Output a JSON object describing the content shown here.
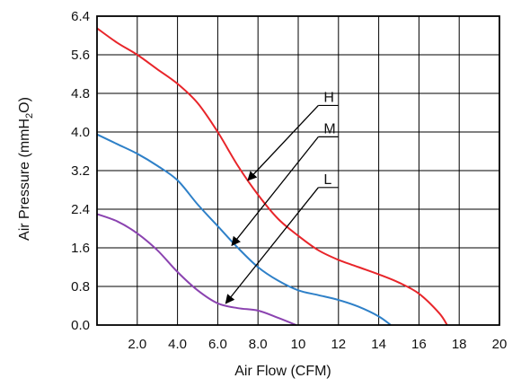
{
  "chart_data": {
    "type": "line",
    "xlabel": "Air Flow (CFM)",
    "ylabel_parts": [
      "Air Pressure (mmH",
      "2",
      "O)"
    ],
    "xlim": [
      0,
      20
    ],
    "ylim": [
      0,
      6.4
    ],
    "grid": true,
    "x_ticks": [
      {
        "value": 2,
        "label": "2.0"
      },
      {
        "value": 4,
        "label": "4.0"
      },
      {
        "value": 6,
        "label": "6.0"
      },
      {
        "value": 8,
        "label": "8.0"
      },
      {
        "value": 10,
        "label": "10"
      },
      {
        "value": 12,
        "label": "12"
      },
      {
        "value": 14,
        "label": "14"
      },
      {
        "value": 16,
        "label": "16"
      },
      {
        "value": 18,
        "label": "18"
      },
      {
        "value": 20,
        "label": "20"
      }
    ],
    "y_ticks": [
      {
        "value": 0,
        "label": "0.0"
      },
      {
        "value": 0.8,
        "label": "0.8"
      },
      {
        "value": 1.6,
        "label": "1.6"
      },
      {
        "value": 2.4,
        "label": "2.4"
      },
      {
        "value": 3.2,
        "label": "3.2"
      },
      {
        "value": 4.0,
        "label": "4.0"
      },
      {
        "value": 4.8,
        "label": "4.8"
      },
      {
        "value": 5.6,
        "label": "5.6"
      },
      {
        "value": 6.4,
        "label": "6.4"
      }
    ],
    "series": [
      {
        "name": "H",
        "color": "#e8252a",
        "x": [
          0,
          1,
          2,
          3,
          4,
          5,
          6,
          7,
          8,
          9,
          10,
          11,
          12,
          13,
          14,
          15,
          16,
          17,
          17.4
        ],
        "y": [
          6.15,
          5.85,
          5.6,
          5.3,
          5.0,
          4.6,
          4.0,
          3.3,
          2.7,
          2.2,
          1.85,
          1.55,
          1.35,
          1.2,
          1.05,
          0.88,
          0.65,
          0.25,
          0.0
        ]
      },
      {
        "name": "M",
        "color": "#2e80c8",
        "x": [
          0,
          1,
          2,
          3,
          4,
          5,
          6,
          7,
          8,
          9,
          10,
          11,
          12,
          13,
          14,
          14.6
        ],
        "y": [
          3.95,
          3.75,
          3.55,
          3.3,
          3.0,
          2.5,
          2.05,
          1.6,
          1.2,
          0.92,
          0.72,
          0.62,
          0.52,
          0.38,
          0.18,
          0.0
        ]
      },
      {
        "name": "L",
        "color": "#8b43b0",
        "x": [
          0,
          1,
          2,
          3,
          4,
          5,
          6,
          7,
          8,
          9,
          9.9
        ],
        "y": [
          2.3,
          2.15,
          1.9,
          1.55,
          1.1,
          0.72,
          0.45,
          0.35,
          0.3,
          0.15,
          0.0
        ]
      }
    ],
    "annotations": [
      {
        "text": "H",
        "label_at": [
          11,
          4.55
        ],
        "arrow_to": [
          7.5,
          3.0
        ]
      },
      {
        "text": "M",
        "label_at": [
          11,
          3.9
        ],
        "arrow_to": [
          6.7,
          1.65
        ]
      },
      {
        "text": "L",
        "label_at": [
          11,
          2.85
        ],
        "arrow_to": [
          6.4,
          0.45
        ]
      }
    ]
  }
}
